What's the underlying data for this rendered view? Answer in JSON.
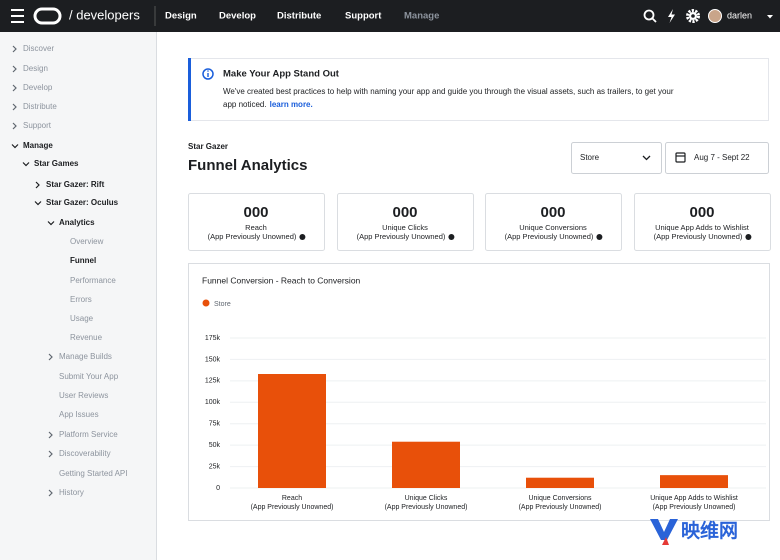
{
  "nav": {
    "brand": "/ developers",
    "items": [
      "Design",
      "Develop",
      "Distribute",
      "Support",
      "Manage"
    ],
    "user": "darlen"
  },
  "sidebar": [
    "Discover",
    "Design",
    "Develop",
    "Distribute",
    "Support",
    "Manage",
    "Star Games",
    "Star Gazer: Rift",
    "Star Gazer: Oculus",
    "Analytics",
    "Overview",
    "Funnel",
    "Performance",
    "Errors",
    "Usage",
    "Revenue",
    "Manage Builds",
    "Submit Your App",
    "User Reviews",
    "App Issues",
    "Platform Service",
    "Discoverability",
    "Getting Started API",
    "History"
  ],
  "banner": {
    "title": "Make Your App Stand Out",
    "text": [
      "We've created best practices to help with naming your app and guide you through the visual assets, such as trailers, to get your",
      "app noticed."
    ],
    "link": "learn more."
  },
  "header": {
    "app": "Star Gazer",
    "title": "Funnel Analytics",
    "filter": "Store",
    "date_range": "Aug 7 - Sept 22"
  },
  "cards": [
    {
      "value": "000",
      "label": [
        "Reach",
        "(App Previously Unowned)"
      ]
    },
    {
      "value": "000",
      "label": [
        "Unique Clicks",
        "(App Previously Unowned)"
      ]
    },
    {
      "value": "000",
      "label": [
        "Unique Conversions",
        "(App Previously Unowned)"
      ]
    },
    {
      "value": "000",
      "label": [
        "Unique App Adds to Wishlist",
        "(App Previously Unowned)"
      ]
    }
  ],
  "chart_data": {
    "type": "bar",
    "title": "Funnel Conversion - Reach to Conversion",
    "categories": [
      [
        "Reach",
        "(App Previously Unowned)"
      ],
      [
        "Unique Clicks",
        "(App Previously Unowned)"
      ],
      [
        "Unique Conversions",
        "(App Previously Unowned)"
      ],
      [
        "Unique App Adds to Wishlist",
        "(App Previously Unowned)"
      ]
    ],
    "series": [
      {
        "name": "Store",
        "color": "#e8500a",
        "values": [
          133000,
          54000,
          12000,
          15000
        ]
      }
    ],
    "ylim": [
      0,
      175000
    ],
    "yticks": [
      0,
      {
        "value": 25000,
        "label": "25k"
      },
      {
        "value": 50000,
        "label": "50k"
      },
      {
        "value": 75000,
        "label": "75k"
      },
      {
        "value": 100000,
        "label": "100k"
      },
      {
        "value": 125000,
        "label": "125k"
      },
      {
        "value": 150000,
        "label": "150k"
      },
      {
        "value": 175000,
        "label": "175k"
      }
    ],
    "grid": true
  },
  "watermark": "映维网"
}
